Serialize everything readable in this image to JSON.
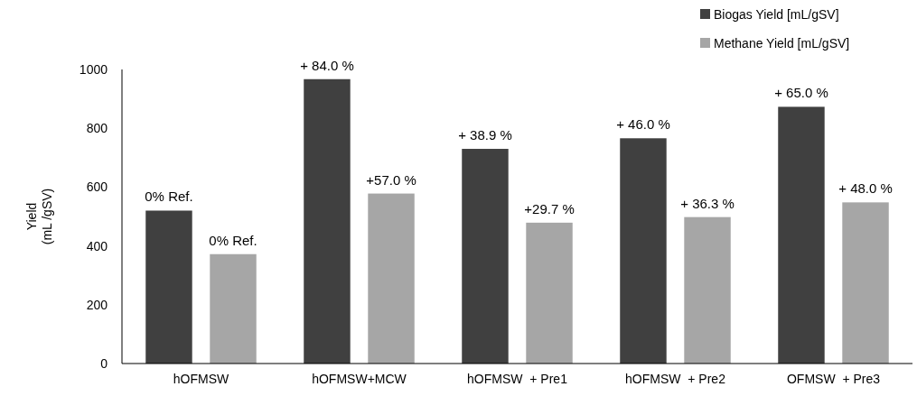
{
  "chart_data": {
    "type": "bar",
    "ylabel": "Yield\n(mL /gSV)",
    "categories": [
      "hOFMSW",
      "hOFMSW+MCW",
      "hOFMSW  + Pre1",
      "hOFMSW  + Pre2",
      "OFMSW  + Pre3"
    ],
    "series": [
      {
        "name": "Biogas Yield [mL/gSV]",
        "color": "#404040",
        "values": [
          520,
          967,
          730,
          766,
          873
        ]
      },
      {
        "name": "Methane Yield [mL/gSV]",
        "color": "#a6a6a6",
        "values": [
          372,
          578,
          479,
          498,
          548
        ]
      }
    ],
    "annotations": [
      "0% Ref.",
      "+ 84.0 %",
      "+ 38.9 %",
      "+ 46.0 %",
      "+ 65.0 %",
      "0% Ref.",
      "+57.0 %",
      "+29.7 %",
      "+ 36.3 %",
      "+ 48.0 %"
    ],
    "ylim": [
      0,
      1000
    ],
    "yticks": [
      0,
      200,
      400,
      600,
      800,
      1000
    ],
    "grid": false,
    "legend": "top right"
  }
}
